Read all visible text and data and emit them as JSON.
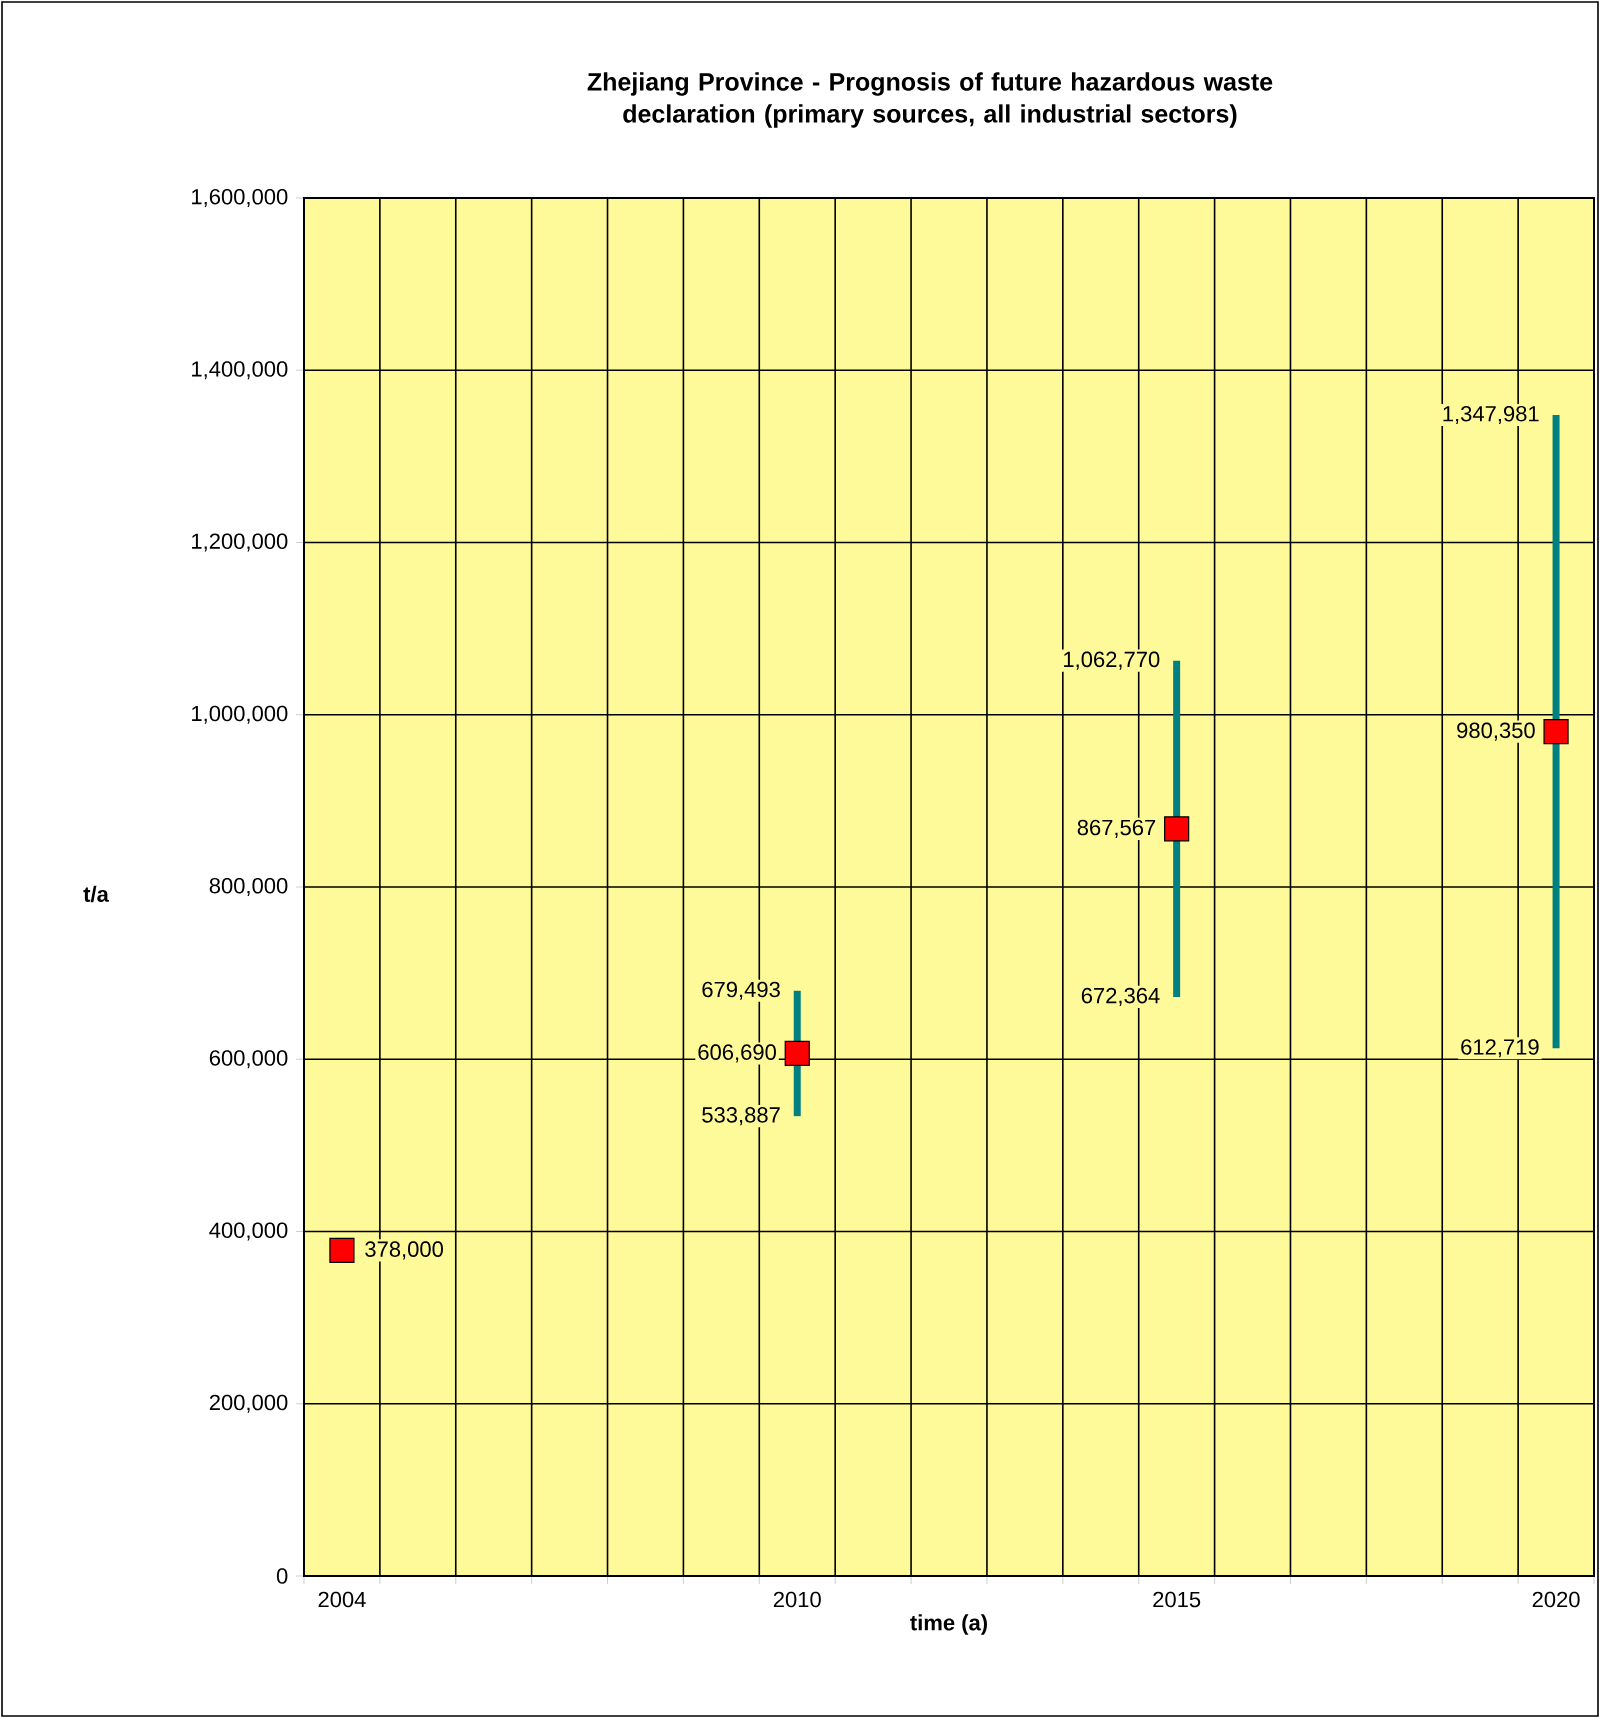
{
  "chart_data": {
    "type": "scatter",
    "title": "Zhejiang Province - Prognosis of future hazardous waste declaration (primary sources, all industrial sectors)",
    "xlabel": "time (a)",
    "ylabel": "t/a",
    "categories": [
      "2004",
      null,
      null,
      null,
      null,
      null,
      "2010",
      null,
      null,
      null,
      null,
      "2015",
      null,
      null,
      null,
      null,
      "2020"
    ],
    "values": [
      378000,
      null,
      null,
      null,
      null,
      null,
      606690,
      null,
      null,
      null,
      null,
      867567,
      null,
      null,
      null,
      null,
      980350
    ],
    "value_labels": [
      "378,000",
      null,
      null,
      null,
      null,
      null,
      "606,690",
      null,
      null,
      null,
      null,
      "867,567",
      null,
      null,
      null,
      null,
      "980,350"
    ],
    "errors": [
      null,
      null,
      null,
      null,
      null,
      null,
      [
        533887,
        679493
      ],
      null,
      null,
      null,
      null,
      [
        672364,
        1062770
      ],
      null,
      null,
      null,
      null,
      [
        612719,
        1347981
      ]
    ],
    "color": "#ff0000",
    "marker": "square",
    "grid": true,
    "ylim": [
      0,
      1600000
    ],
    "yticks": [
      0,
      {
        "value": 200000,
        "label": "200,000"
      },
      {
        "value": 400000,
        "label": "400,000"
      },
      {
        "value": 600000,
        "label": "600,000"
      },
      {
        "value": 800000,
        "label": "800,000"
      },
      {
        "value": 1000000,
        "label": "1,000,000"
      },
      {
        "value": 1200000,
        "label": "1,200,000"
      },
      {
        "value": 1400000,
        "label": "1,400,000"
      },
      {
        "value": 1600000,
        "label": "1,600,000"
      }
    ],
    "annotations": [
      {
        "text": "679,493",
        "x": "2010",
        "y": 679493
      },
      {
        "text": "533,887",
        "x": "2010",
        "y": 533887
      },
      {
        "text": "1,062,770",
        "x": "2015",
        "y": 1062770
      },
      {
        "text": "672,364",
        "x": "2015",
        "y": 672364
      },
      {
        "text": "1,347,981",
        "x": "2020",
        "y": 1347981
      },
      {
        "text": "612,719",
        "x": "2020",
        "y": 612719
      }
    ]
  }
}
